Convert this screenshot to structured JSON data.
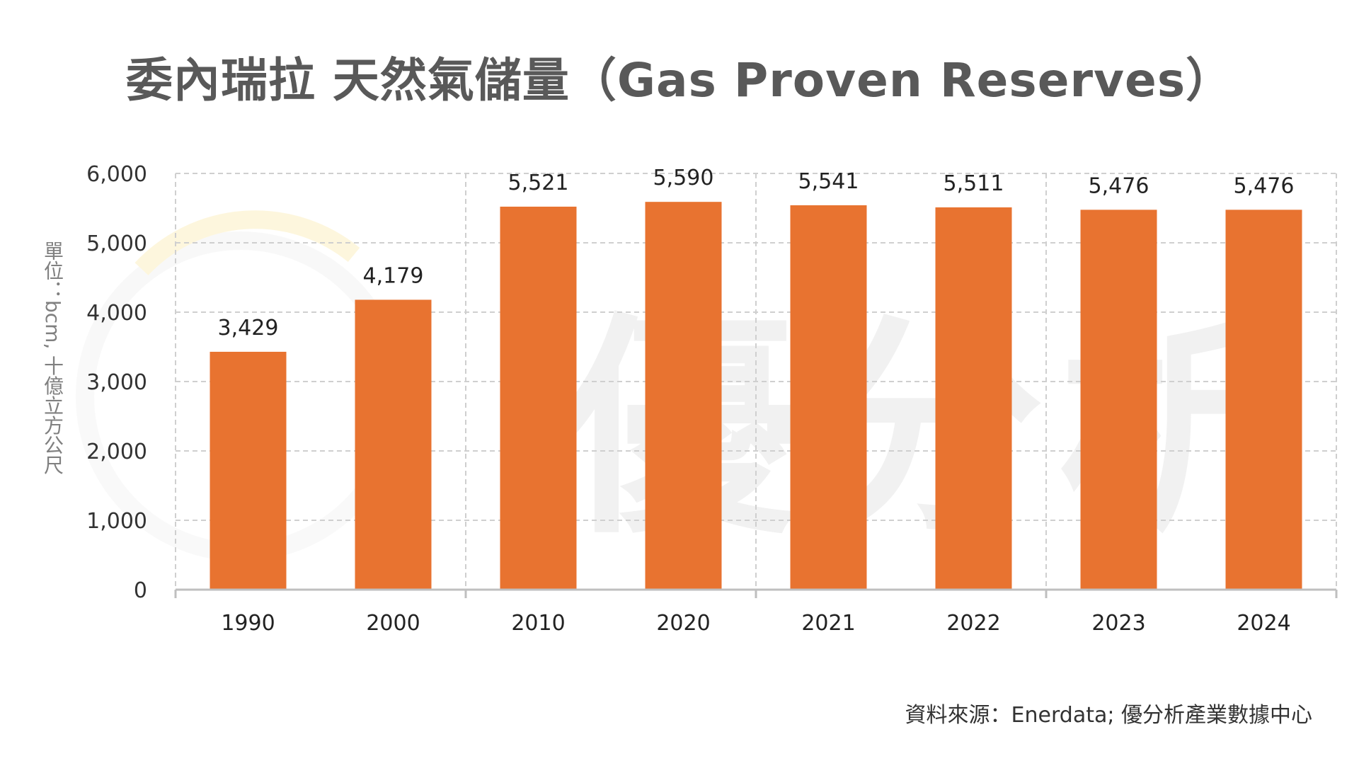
{
  "chart_data": {
    "type": "bar",
    "title": "委內瑞拉 天然氣儲量（Gas Proven Reserves）",
    "ylabel": "單位：bcm, 十億立方公尺",
    "xlabel": "",
    "categories": [
      "1990",
      "2000",
      "2010",
      "2020",
      "2021",
      "2022",
      "2023",
      "2024"
    ],
    "values": [
      3429,
      4179,
      5521,
      5590,
      5541,
      5511,
      5476,
      5476
    ],
    "value_labels": [
      "3,429",
      "4,179",
      "5,521",
      "5,590",
      "5,541",
      "5,511",
      "5,476",
      "5,476"
    ],
    "ylim": [
      0,
      6000
    ],
    "yticks": [
      0,
      1000,
      2000,
      3000,
      4000,
      5000,
      6000
    ],
    "ytick_labels": [
      "0",
      "1,000",
      "2,000",
      "3,000",
      "4,000",
      "5,000",
      "6,000"
    ],
    "grid": true,
    "bar_color": "#E87330",
    "source": "資料來源：Enerdata; 優分析產業數據中心"
  },
  "watermark_text": "優分析"
}
